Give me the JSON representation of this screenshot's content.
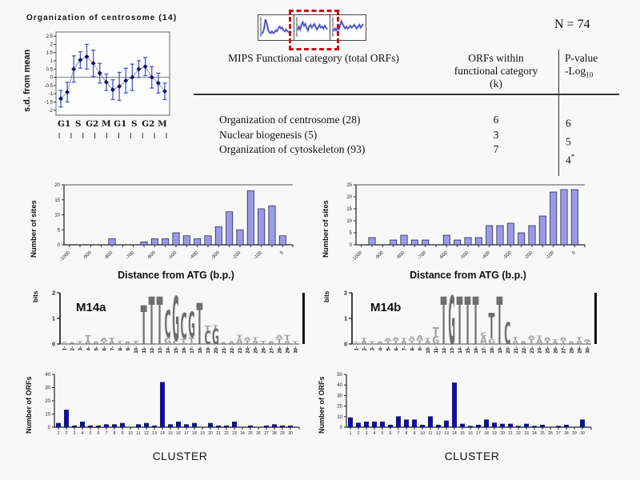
{
  "texts": {
    "n_label": "N = 74",
    "profile_title": "Organization of centrosome ",
    "profile_title_count": "(14)",
    "profile_ylabel": "s.d. from mean",
    "sites_ylabel": "Number of sites",
    "sites_xlabel": "Distance from ATG (b.p.)",
    "bits_label": "bits",
    "logo_a_label": "M14a",
    "logo_b_label": "M14b",
    "orfs_ylabel": "Number of ORFs",
    "cluster_xlabel": "CLUSTER"
  },
  "mips_table": {
    "header": {
      "col1": "MIPS Functional category (total ORFs)",
      "col2_line1": "ORFs within",
      "col2_line2": "functional category",
      "col2_line3": "(k)",
      "col3_line1": "P-value",
      "col3_line2_main": "-Log",
      "col3_line2_sub": "10"
    },
    "rows": [
      {
        "category": "Organization of centrosome (28)",
        "orfs_within": "6",
        "p_value": "6",
        "p_value_sup": ""
      },
      {
        "category": "Nuclear biogenesis (5)",
        "orfs_within": "3",
        "p_value": "5",
        "p_value_sup": ""
      },
      {
        "category": "Organization of cytoskeleton (93)",
        "orfs_within": "7",
        "p_value": "4",
        "p_value_sup": "*"
      }
    ]
  },
  "chart_data": [
    {
      "id": "profile",
      "type": "line",
      "title": "Organization of centrosome (14)",
      "ylabel": "s.d. from mean",
      "ylim": [
        -2.3,
        2.75
      ],
      "yticks": [
        2.5,
        2,
        1.5,
        1,
        0.5,
        0,
        -0.5,
        -1,
        -1.5,
        -2
      ],
      "phase_labels": [
        "G1",
        "S",
        "G2",
        "M",
        "G1",
        "S",
        "G2",
        "M"
      ],
      "values": [
        -1.3,
        -0.9,
        0.5,
        1.05,
        1.25,
        0.85,
        0.25,
        -0.3,
        -0.75,
        -0.55,
        -0.2,
        0,
        0.5,
        0.65,
        0,
        -0.35,
        -0.85
      ],
      "errors": [
        0.5,
        0.6,
        0.8,
        0.5,
        0.75,
        0.8,
        0.6,
        0.5,
        0.6,
        0.85,
        0.75,
        0.8,
        0.5,
        0.55,
        0.65,
        0.6,
        0.5
      ],
      "marker_color": "#10106a",
      "error_color": "#4a55cc",
      "line_color": "#909090"
    },
    {
      "id": "thumbs",
      "type": "line",
      "series": [
        [
          0.15,
          0.25,
          0.45,
          0.95,
          0.75,
          0.4,
          0.25,
          0.2,
          0.3,
          0.2,
          0.25,
          0.35,
          0.3,
          0.45,
          0.55,
          0.45,
          0.5,
          0.35,
          0.3,
          0.4,
          0.3,
          0.25,
          0.3,
          0.2
        ],
        [
          0.35,
          0.55,
          0.4,
          0.65,
          0.8,
          0.6,
          0.7,
          0.5,
          0.35,
          0.55,
          0.65,
          0.5,
          0.6,
          0.7,
          0.55,
          0.4,
          0.5,
          0.65,
          0.5,
          0.55,
          0.45,
          0.6,
          0.5,
          0.4
        ],
        [
          0.3,
          0.45,
          0.35,
          0.5,
          0.4,
          0.6,
          0.85,
          0.7,
          0.55,
          0.45,
          0.55,
          0.45,
          0.5,
          0.6,
          0.5,
          0.55,
          0.65,
          0.55,
          0.45,
          0.55,
          0.65,
          0.5,
          0.6,
          0.7
        ]
      ],
      "highlight_index": 1,
      "highlight_color": "#cc1111",
      "line_color": "#2a2aa8",
      "band_color": "#9aa6ea"
    },
    {
      "id": "sites-a",
      "type": "bar",
      "ylabel": "Number of sites",
      "xlabel": "Distance from ATG (b.p.)",
      "categories": [
        -1000,
        -950,
        -900,
        -850,
        -800,
        -750,
        -700,
        -650,
        -600,
        -550,
        -500,
        -450,
        -400,
        -350,
        -300,
        -250,
        -200,
        -150,
        -100,
        -50,
        0
      ],
      "values": [
        0,
        0,
        0,
        0,
        2,
        0,
        0,
        1,
        2,
        2,
        4,
        3,
        2,
        3,
        6,
        11,
        5,
        18,
        12,
        13,
        3
      ],
      "xtick_labels": [
        "-1000",
        "-900",
        "-800",
        "-700",
        "-600",
        "-500",
        "-400",
        "-300",
        "-200",
        "-100",
        "0"
      ],
      "ylim": [
        0,
        20
      ],
      "yticks": [
        0,
        5,
        10,
        15,
        20
      ],
      "bar_color": "#9a9ae8"
    },
    {
      "id": "sites-b",
      "type": "bar",
      "ylabel": "Number of sites",
      "xlabel": "Distance from ATG (b.p.)",
      "categories": [
        -1000,
        -950,
        -900,
        -850,
        -800,
        -750,
        -700,
        -650,
        -600,
        -550,
        -500,
        -450,
        -400,
        -350,
        -300,
        -250,
        -200,
        -150,
        -100,
        -50,
        0
      ],
      "values": [
        0,
        3,
        0,
        2,
        4,
        2,
        2,
        0,
        4,
        2,
        3,
        3,
        8,
        8,
        9,
        5,
        8,
        12,
        22,
        23,
        23
      ],
      "xtick_labels": [
        "-1000",
        "-900",
        "-800",
        "-700",
        "-600",
        "-500",
        "-400",
        "-300",
        "-200",
        "-100",
        "0"
      ],
      "ylim": [
        0,
        25
      ],
      "yticks": [
        0,
        5,
        10,
        15,
        20,
        25
      ],
      "bar_color": "#9a9ae8"
    },
    {
      "id": "logo-a",
      "type": "logo",
      "label": "M14a",
      "ylabel": "bits",
      "yticks": [
        0,
        1,
        2
      ],
      "ylim": [
        0,
        2
      ],
      "categories": [
        1,
        2,
        3,
        4,
        5,
        6,
        7,
        8,
        9,
        10,
        11,
        12,
        13,
        14,
        15,
        16,
        17,
        18,
        19,
        20,
        21,
        22,
        23,
        24,
        25,
        26,
        27,
        28,
        29,
        30
      ],
      "consensus": "TTTCGCGT",
      "stacks": [
        [
          [
            "T",
            0.08
          ]
        ],
        [
          [
            "A",
            0.08
          ]
        ],
        [
          [
            "T",
            0.1
          ]
        ],
        [
          [
            "A",
            0.12
          ],
          [
            "T",
            0.22
          ]
        ],
        [
          [
            "A",
            0.1
          ]
        ],
        [
          [
            "T",
            0.1
          ],
          [
            "A",
            0.15
          ]
        ],
        [
          [
            "A",
            0.1
          ],
          [
            "T",
            0.15
          ]
        ],
        [
          [
            "T",
            0.1
          ]
        ],
        [
          [
            "A",
            0.1
          ]
        ],
        [
          [
            "T",
            0.12
          ]
        ],
        [
          [
            "T",
            1.5
          ]
        ],
        [
          [
            "T",
            1.85
          ]
        ],
        [
          [
            "T",
            1.85
          ]
        ],
        [
          [
            "G",
            0.25
          ],
          [
            "C",
            1.05
          ]
        ],
        [
          [
            "C",
            0.12
          ],
          [
            "G",
            1.75
          ]
        ],
        [
          [
            "T",
            0.2
          ],
          [
            "C",
            1.0
          ]
        ],
        [
          [
            "T",
            0.25
          ],
          [
            "G",
            1.0
          ]
        ],
        [
          [
            "T",
            1.6
          ]
        ],
        [
          [
            "C",
            0.5
          ],
          [
            "T",
            0.2
          ]
        ],
        [
          [
            "G",
            0.6
          ],
          [
            "T",
            0.12
          ]
        ],
        [
          [
            "A",
            0.08
          ]
        ],
        [
          [
            "A",
            0.1
          ]
        ],
        [
          [
            "A",
            0.2
          ],
          [
            "T",
            0.15
          ]
        ],
        [
          [
            "T",
            0.15
          ],
          [
            "A",
            0.1
          ]
        ],
        [
          [
            "A",
            0.15
          ],
          [
            "T",
            0.1
          ]
        ],
        [
          [
            "T",
            0.12
          ]
        ],
        [
          [
            "A",
            0.1
          ]
        ],
        [
          [
            "T",
            0.2
          ],
          [
            "A",
            0.15
          ]
        ],
        [
          [
            "A",
            0.15
          ],
          [
            "T",
            0.2
          ]
        ],
        [
          [
            "T",
            0.1
          ]
        ]
      ]
    },
    {
      "id": "logo-b",
      "type": "logo",
      "label": "M14b",
      "ylabel": "bits",
      "yticks": [
        0,
        1,
        2
      ],
      "ylim": [
        0,
        2
      ],
      "categories": [
        1,
        2,
        3,
        4,
        5,
        6,
        7,
        8,
        9,
        10,
        11,
        12,
        13,
        14,
        15,
        16,
        17,
        18,
        19,
        20,
        21,
        22,
        23,
        24,
        25,
        26,
        27,
        28,
        29,
        30
      ],
      "consensus": "TGTTTT",
      "stacks": [
        [
          [
            "T",
            0.08
          ]
        ],
        [
          [
            "A",
            0.12
          ],
          [
            "T",
            0.1
          ]
        ],
        [
          [
            "T",
            0.1
          ]
        ],
        [
          [
            "A",
            0.1
          ]
        ],
        [
          [
            "T",
            0.12
          ],
          [
            "A",
            0.1
          ]
        ],
        [
          [
            "T",
            0.15
          ],
          [
            "A",
            0.1
          ]
        ],
        [
          [
            "A",
            0.12
          ],
          [
            "T",
            0.1
          ]
        ],
        [
          [
            "T",
            0.15
          ],
          [
            "A",
            0.15
          ]
        ],
        [
          [
            "T",
            0.15
          ],
          [
            "A",
            0.18
          ]
        ],
        [
          [
            "A",
            0.12
          ],
          [
            "T",
            0.1
          ]
        ],
        [
          [
            "G",
            0.3
          ],
          [
            "T",
            0.35
          ]
        ],
        [
          [
            "T",
            1.85
          ]
        ],
        [
          [
            "G",
            1.9
          ]
        ],
        [
          [
            "T",
            1.85
          ]
        ],
        [
          [
            "T",
            1.85
          ]
        ],
        [
          [
            "T",
            1.85
          ]
        ],
        [
          [
            "A",
            0.3
          ],
          [
            "C",
            0.15
          ]
        ],
        [
          [
            "G",
            0.2
          ],
          [
            "T",
            1.0
          ]
        ],
        [
          [
            "T",
            1.85
          ]
        ],
        [
          [
            "C",
            0.85
          ]
        ],
        [
          [
            "A",
            0.15
          ],
          [
            "T",
            0.1
          ]
        ],
        [
          [
            "A",
            0.1
          ]
        ],
        [
          [
            "T",
            0.2
          ],
          [
            "A",
            0.1
          ]
        ],
        [
          [
            "A",
            0.2
          ],
          [
            "T",
            0.1
          ]
        ],
        [
          [
            "T",
            0.15
          ],
          [
            "A",
            0.1
          ]
        ],
        [
          [
            "A",
            0.1
          ],
          [
            "T",
            0.08
          ]
        ],
        [
          [
            "T",
            0.15
          ],
          [
            "A",
            0.1
          ]
        ],
        [
          [
            "A",
            0.1
          ]
        ],
        [
          [
            "A",
            0.15
          ],
          [
            "T",
            0.12
          ]
        ],
        [
          [
            "T",
            0.1
          ],
          [
            "A",
            0.08
          ]
        ]
      ]
    },
    {
      "id": "orfs-a",
      "type": "bar",
      "ylabel": "Number of ORFs",
      "xlabel": "CLUSTER",
      "categories": [
        1,
        2,
        3,
        4,
        5,
        6,
        7,
        8,
        9,
        10,
        11,
        12,
        13,
        14,
        15,
        16,
        17,
        18,
        19,
        20,
        21,
        22,
        23,
        24,
        25,
        26,
        27,
        28,
        29,
        30
      ],
      "values": [
        3,
        13,
        1,
        4,
        1,
        1,
        2,
        2,
        3,
        0,
        2,
        3,
        1,
        34,
        2,
        4,
        2,
        3,
        0,
        3,
        1,
        1,
        4,
        0,
        1,
        0,
        1,
        2,
        1,
        1
      ],
      "ylim": [
        0,
        40
      ],
      "yticks": [
        0,
        10,
        20,
        30,
        40
      ],
      "bar_color": "#0b0bc4"
    },
    {
      "id": "orfs-b",
      "type": "bar",
      "ylabel": "Number of ORFs",
      "xlabel": "CLUSTER",
      "categories": [
        1,
        2,
        3,
        4,
        5,
        6,
        7,
        8,
        9,
        10,
        11,
        12,
        13,
        14,
        15,
        16,
        17,
        18,
        19,
        20,
        21,
        22,
        23,
        24,
        25,
        26,
        27,
        28,
        29,
        30
      ],
      "values": [
        9,
        4,
        5,
        5,
        5,
        2,
        10,
        7,
        7,
        2,
        10,
        2,
        6,
        42,
        3,
        1,
        2,
        7,
        4,
        3,
        3,
        1,
        3,
        1,
        2,
        0,
        1,
        2,
        0,
        7
      ],
      "ylim": [
        0,
        50
      ],
      "yticks": [
        0,
        10,
        20,
        30,
        40,
        50
      ],
      "bar_color": "#0b0bc4"
    }
  ]
}
